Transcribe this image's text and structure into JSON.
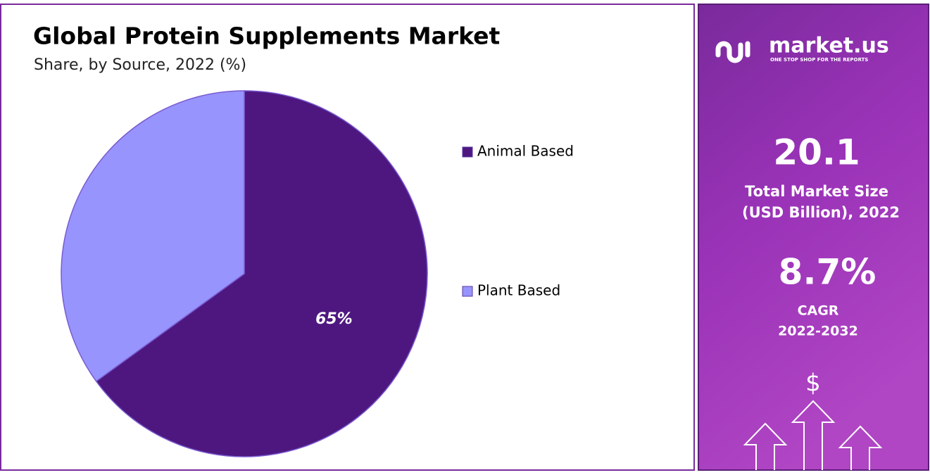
{
  "chart_data": {
    "type": "pie",
    "title": "Global Protein Supplements Market",
    "subtitle": "Share, by Source, 2022 (%)",
    "categories": [
      "Animal Based",
      "Plant Based"
    ],
    "values": [
      65,
      35
    ],
    "value_labels": [
      "65%",
      null
    ],
    "colors": [
      "#4e1780",
      "#9794fd"
    ],
    "legend": "right"
  },
  "panel": {
    "brand": "market.us",
    "tagline": "ONE STOP SHOP FOR THE REPORTS",
    "market_size": "20.1",
    "market_size_label_1": "Total Market Size",
    "market_size_label_2": "(USD Billion), 2022",
    "cagr": "8.7%",
    "cagr_label": "CAGR",
    "cagr_period": "2022-2032",
    "currency_icon": "$"
  }
}
